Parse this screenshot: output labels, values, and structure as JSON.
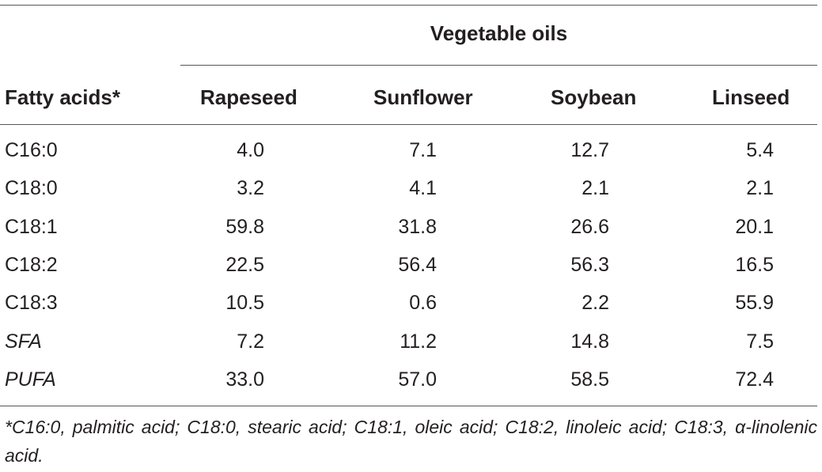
{
  "table": {
    "group_header": "Vegetable oils",
    "columns": [
      "Fatty acids*",
      "Rapeseed",
      "Sunflower",
      "Soybean",
      "Linseed"
    ],
    "rows": [
      {
        "label": "C16:0",
        "values": [
          "4.0",
          "7.1",
          "12.7",
          "5.4"
        ]
      },
      {
        "label": "C18:0",
        "values": [
          "3.2",
          "4.1",
          "2.1",
          "2.1"
        ]
      },
      {
        "label": "C18:1",
        "values": [
          "59.8",
          "31.8",
          "26.6",
          "20.1"
        ]
      },
      {
        "label": "C18:2",
        "values": [
          "22.5",
          "56.4",
          "56.3",
          "16.5"
        ]
      },
      {
        "label": "C18:3",
        "values": [
          "10.5",
          "0.6",
          "2.2",
          "55.9"
        ]
      },
      {
        "label": "SFA",
        "values": [
          "7.2",
          "11.2",
          "14.8",
          "7.5"
        ]
      },
      {
        "label": "PUFA",
        "values": [
          "33.0",
          "57.0",
          "58.5",
          "72.4"
        ]
      }
    ],
    "footnote": "*C16:0, palmitic acid; C18:0, stearic acid; C18:1, oleic acid; C18:2, linoleic acid; C18:3, α-linolenic acid."
  }
}
